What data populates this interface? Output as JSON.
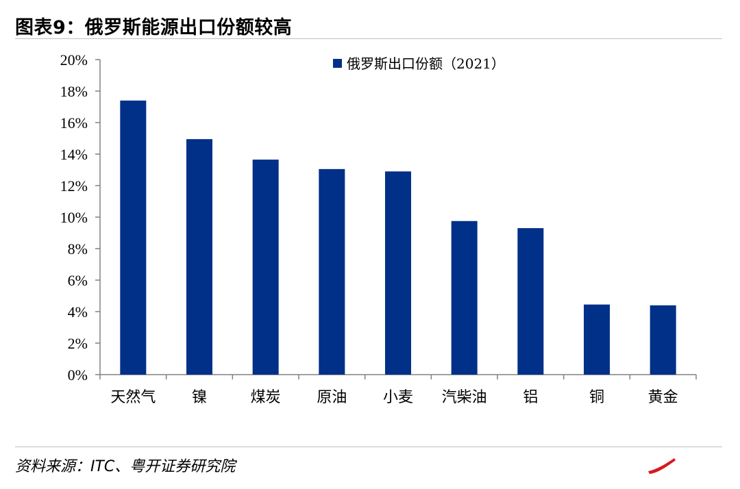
{
  "figure": {
    "title": "图表9：俄罗斯能源出口份额较高",
    "source": "资料来源：ITC、粤开证券研究院"
  },
  "colors": {
    "bar": "#003087",
    "axis": "#808080",
    "text": "#000000",
    "logo": "#d7191f"
  },
  "chart_data": {
    "type": "bar",
    "categories": [
      "天然气",
      "镍",
      "煤炭",
      "原油",
      "小麦",
      "汽柴油",
      "铝",
      "铜",
      "黄金"
    ],
    "series": [
      {
        "name": "俄罗斯出口份额（2021）",
        "values": [
          17.4,
          14.95,
          13.65,
          13.05,
          12.9,
          9.75,
          9.3,
          4.45,
          4.4
        ]
      }
    ],
    "ylim": [
      0,
      20
    ],
    "yticks": [
      "0%",
      "2%",
      "4%",
      "6%",
      "8%",
      "10%",
      "12%",
      "14%",
      "16%",
      "18%",
      "20%"
    ],
    "xlabel": "",
    "ylabel": "",
    "grid": false,
    "legend": "top-center"
  }
}
